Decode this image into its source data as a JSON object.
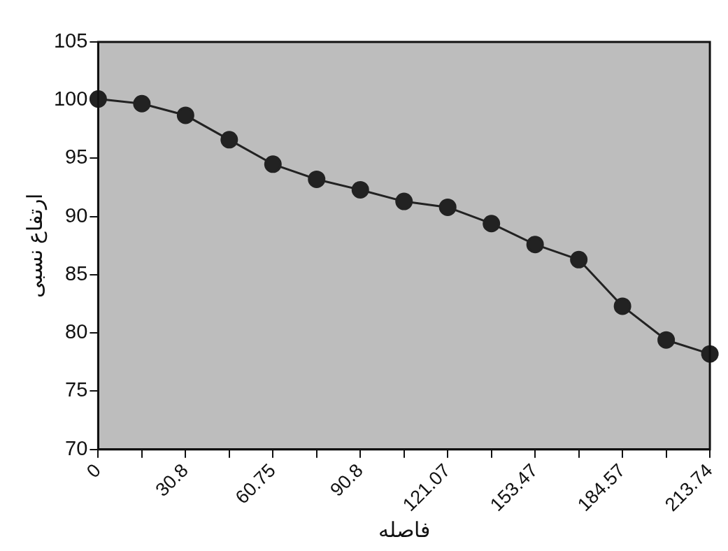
{
  "chart_data": {
    "type": "line",
    "xlabel": "فاصله",
    "ylabel": "ارتفاع نسبی",
    "categories": [
      "0",
      null,
      "30.8",
      null,
      "60.75",
      null,
      "90.8",
      null,
      "121.07",
      null,
      "153.47",
      null,
      "184.57",
      null,
      "213.74"
    ],
    "series": [
      {
        "color": "#222222",
        "values": [
          100.1,
          99.7,
          98.7,
          96.6,
          94.5,
          93.2,
          92.3,
          91.3,
          90.8,
          89.4,
          87.6,
          86.3,
          82.3,
          79.4,
          78.2
        ]
      }
    ],
    "ylim": [
      70,
      105
    ],
    "yticks": [
      70,
      75,
      80,
      85,
      90,
      95,
      100,
      105
    ],
    "grid": false,
    "legend": false,
    "marker": "circle",
    "line_style": "solid"
  }
}
